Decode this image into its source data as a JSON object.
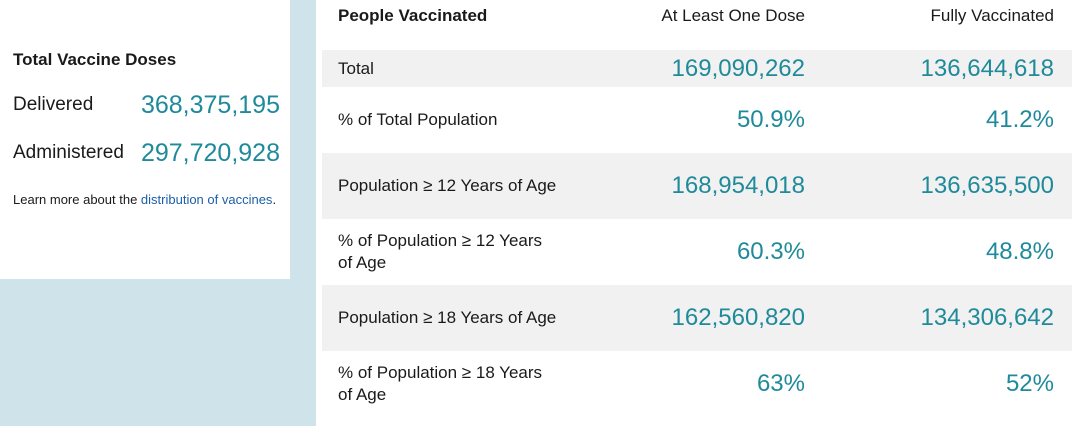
{
  "summary": {
    "title": "Total Vaccine Doses",
    "delivered_label": "Delivered",
    "delivered_value": "368,375,195",
    "administered_label": "Administered",
    "administered_value": "297,720,928",
    "learn_prefix": "Learn more about the ",
    "learn_link": "distribution of vaccines",
    "learn_suffix": "."
  },
  "table": {
    "headers": [
      "People Vaccinated",
      "At Least One Dose",
      "Fully Vaccinated"
    ],
    "rows": [
      {
        "label": "Total",
        "one_dose": "169,090,262",
        "fully": "136,644,618"
      },
      {
        "label": "% of Total Population",
        "one_dose": "50.9%",
        "fully": "41.2%"
      },
      {
        "label": "Population ≥ 12 Years of Age",
        "one_dose": "168,954,018",
        "fully": "136,635,500"
      },
      {
        "label": "% of Population ≥ 12 Years of Age",
        "one_dose": "60.3%",
        "fully": "48.8%"
      },
      {
        "label": "Population ≥ 18 Years of Age",
        "one_dose": "162,560,820",
        "fully": "134,306,642"
      },
      {
        "label": "% of Population ≥ 18 Years of Age",
        "one_dose": "63%",
        "fully": "52%"
      }
    ]
  },
  "colors": {
    "accent_value": "#1f8a9a",
    "panel_bg": "#cfe4ea",
    "row_shade": "#f1f1f1",
    "link": "#1c5fa8"
  }
}
